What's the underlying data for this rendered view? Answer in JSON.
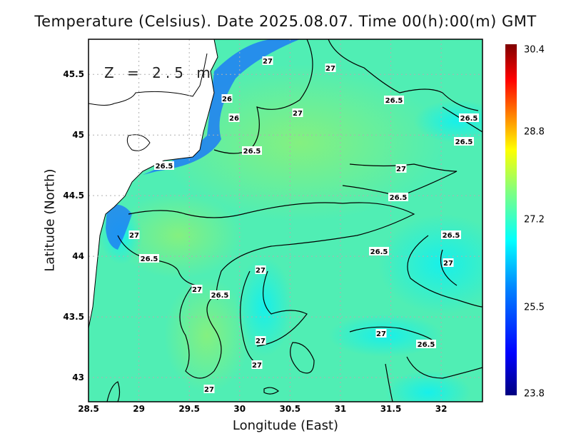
{
  "title": "Temperature (Celsius). Date 2025.08.07. Time 00(h):00(m) GMT",
  "depth_label": "Z = 2.5 m",
  "axes": {
    "xlabel": "Longitude (East)",
    "ylabel": "Latitude (North)",
    "xticks": [
      "28.5",
      "29",
      "29.5",
      "30",
      "30.5",
      "31",
      "31.5",
      "32"
    ],
    "yticks": [
      "45.5",
      "45",
      "44.5",
      "44",
      "43.5",
      "43"
    ],
    "xlim": [
      28.5,
      32.41
    ],
    "ylim": [
      42.8,
      45.79
    ]
  },
  "colorbar": {
    "labels": [
      "30.4",
      "28.8",
      "27.2",
      "25.5",
      "23.8"
    ],
    "min": 23.8,
    "max": 30.4,
    "colors": [
      "#00007f",
      "#0000ff",
      "#0080ff",
      "#00ffff",
      "#80ff80",
      "#ffff00",
      "#ff8000",
      "#ff0000",
      "#7f0000"
    ]
  },
  "contour_labels": [
    "26.5",
    "27",
    "27",
    "26",
    "26",
    "26.5",
    "27",
    "26.5",
    "27",
    "26.5",
    "27",
    "26.5",
    "27",
    "27",
    "27",
    "27",
    "26.5",
    "26.5",
    "27",
    "26.5",
    "26.5",
    "27",
    "26.5",
    "27",
    "26.5"
  ],
  "colors": {
    "land": "#ffffff",
    "sea_base": "#4df0b0",
    "grid": "#b0b0b0"
  }
}
